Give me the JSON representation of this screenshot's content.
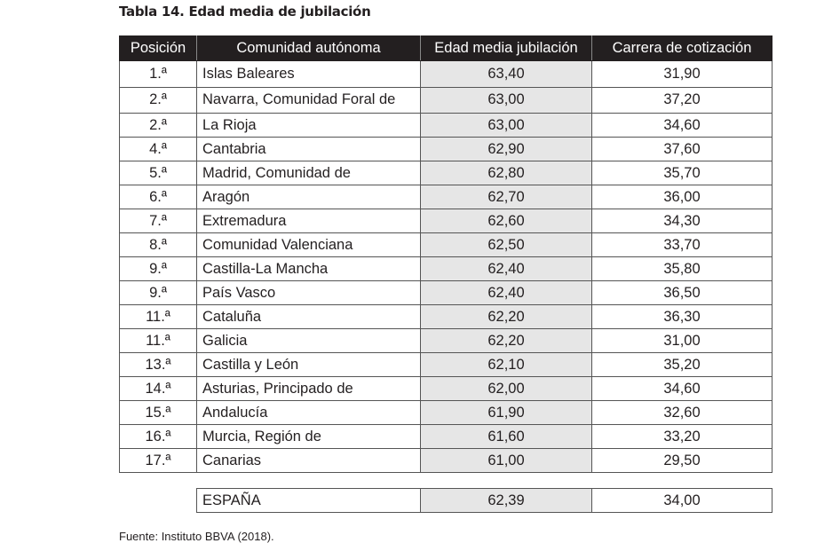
{
  "title": "Tabla 14. Edad media de jubilación",
  "headers": [
    "Posición",
    "Comunidad autónoma",
    "Edad media jubilación",
    "Carrera de cotización"
  ],
  "rows": [
    [
      "1.ª",
      "Islas Baleares",
      "63,40",
      "31,90"
    ],
    [
      "2.ª",
      "Navarra, Comunidad Foral de",
      "63,00",
      "37,20"
    ],
    [
      "2.ª",
      "La Rioja",
      "63,00",
      "34,60"
    ],
    [
      "4.ª",
      "Cantabria",
      "62,90",
      "37,60"
    ],
    [
      "5.ª",
      "Madrid, Comunidad de",
      "62,80",
      "35,70"
    ],
    [
      "6.ª",
      "Aragón",
      "62,70",
      "36,00"
    ],
    [
      "7.ª",
      "Extremadura",
      "62,60",
      "34,30"
    ],
    [
      "8.ª",
      "Comunidad Valenciana",
      "62,50",
      "33,70"
    ],
    [
      "9.ª",
      "Castilla-La Mancha",
      "62,40",
      "35,80"
    ],
    [
      "9.ª",
      "País Vasco",
      "62,40",
      "36,50"
    ],
    [
      "11.ª",
      "Cataluña",
      "62,20",
      "36,30"
    ],
    [
      "11.ª",
      "Galicia",
      "62,20",
      "31,00"
    ],
    [
      "13.ª",
      "Castilla y León",
      "62,10",
      "35,20"
    ],
    [
      "14.ª",
      "Asturias, Principado de",
      "62,00",
      "34,60"
    ],
    [
      "15.ª",
      "Andalucía",
      "61,90",
      "32,60"
    ],
    [
      "16.ª",
      "Murcia, Región de",
      "61,60",
      "33,20"
    ],
    [
      "17.ª",
      "Canarias",
      "61,00",
      "29,50"
    ]
  ],
  "total": [
    "ESPAÑA",
    "62,39",
    "34,00"
  ],
  "source": "Fuente: Instituto BBVA (2018)."
}
